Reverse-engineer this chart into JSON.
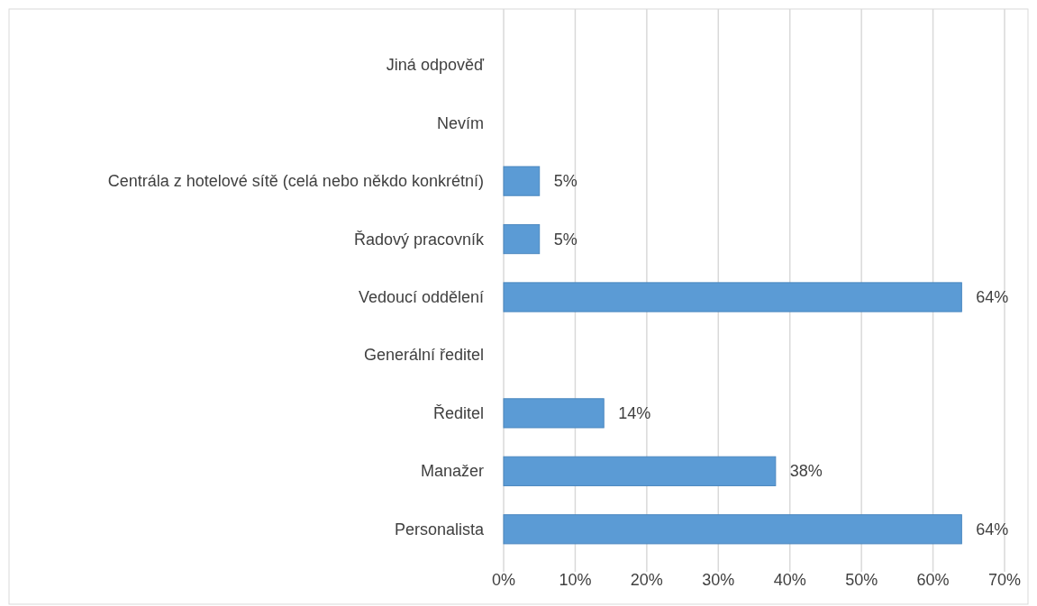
{
  "chart_data": {
    "type": "bar",
    "orientation": "horizontal",
    "categories": [
      "Jiná odpověď",
      "Nevím",
      "Centrála z hotelové sítě (celá nebo někdo konkrétní)",
      "Řadový pracovník",
      "Vedoucí oddělení",
      "Generální ředitel",
      "Ředitel",
      "Manažer",
      "Personalista"
    ],
    "values": [
      0,
      0,
      5,
      5,
      64,
      0,
      14,
      38,
      64
    ],
    "value_labels": [
      null,
      null,
      "5%",
      "5%",
      "64%",
      null,
      "14%",
      "38%",
      "64%"
    ],
    "color": "#5b9bd5",
    "xlim": [
      0,
      70
    ],
    "xticks": [
      {
        "value": 0,
        "label": "0%"
      },
      {
        "value": 10,
        "label": "10%"
      },
      {
        "value": 20,
        "label": "20%"
      },
      {
        "value": 30,
        "label": "30%"
      },
      {
        "value": 40,
        "label": "40%"
      },
      {
        "value": 50,
        "label": "50%"
      },
      {
        "value": 60,
        "label": "60%"
      },
      {
        "value": 70,
        "label": "70%"
      }
    ],
    "grid": "x"
  }
}
